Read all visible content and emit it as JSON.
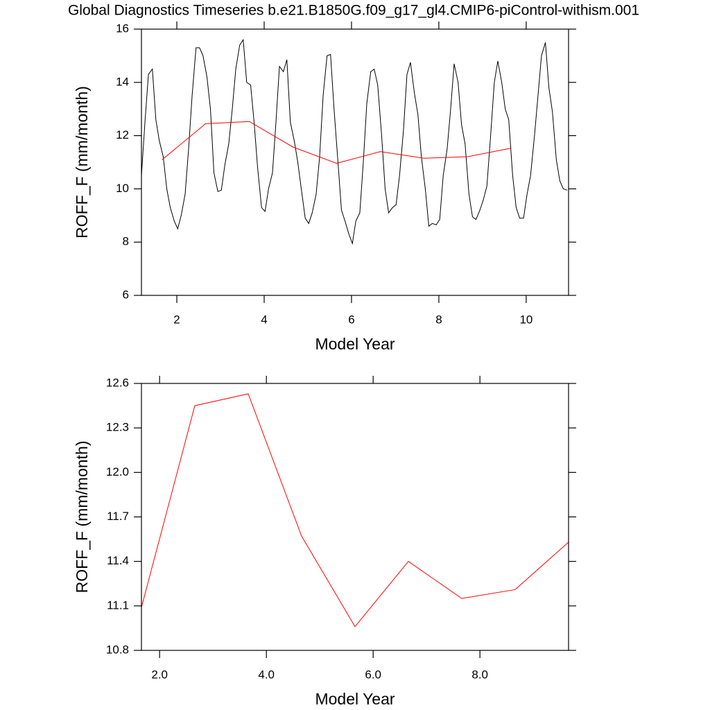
{
  "chart_data": [
    {
      "type": "line",
      "title": "Global Diagnostics Timeseries b.e21.B1850G.f09_g17_gl4.CMIP6-piControl-withism.001",
      "xlabel": "Model Year",
      "ylabel": "ROFF_F (mm/month)",
      "xlim": [
        1.19,
        10.97
      ],
      "xticks": [
        2,
        4,
        6,
        8,
        10
      ],
      "ylim": [
        6,
        16
      ],
      "yticks": [
        6,
        8,
        10,
        12,
        14,
        16
      ],
      "series": [
        {
          "color": "#000000",
          "x": [
            1.19,
            1.27,
            1.35,
            1.44,
            1.52,
            1.6,
            1.69,
            1.77,
            1.85,
            1.94,
            2.02,
            2.1,
            2.19,
            2.27,
            2.35,
            2.44,
            2.52,
            2.6,
            2.69,
            2.77,
            2.85,
            2.94,
            3.02,
            3.1,
            3.19,
            3.27,
            3.35,
            3.44,
            3.52,
            3.6,
            3.69,
            3.77,
            3.85,
            3.94,
            4.02,
            4.1,
            4.19,
            4.27,
            4.35,
            4.44,
            4.52,
            4.6,
            4.69,
            4.77,
            4.85,
            4.94,
            5.02,
            5.1,
            5.19,
            5.27,
            5.35,
            5.44,
            5.52,
            5.6,
            5.69,
            5.77,
            5.85,
            5.94,
            6.02,
            6.1,
            6.19,
            6.27,
            6.35,
            6.44,
            6.52,
            6.6,
            6.69,
            6.77,
            6.85,
            6.94,
            7.02,
            7.1,
            7.19,
            7.27,
            7.35,
            7.44,
            7.52,
            7.6,
            7.69,
            7.77,
            7.85,
            7.94,
            8.02,
            8.1,
            8.19,
            8.27,
            8.35,
            8.44,
            8.52,
            8.6,
            8.69,
            8.77,
            8.85,
            8.94,
            9.02,
            9.1,
            9.19,
            9.27,
            9.35,
            9.44,
            9.52,
            9.6,
            9.69,
            9.77,
            9.85,
            9.94,
            10.02,
            10.1,
            10.19,
            10.27,
            10.35,
            10.44,
            10.52,
            10.6,
            10.69,
            10.77,
            10.85,
            10.94
          ],
          "values": [
            10.5,
            12.5,
            14.3,
            14.5,
            12.6,
            11.8,
            11.2,
            10.0,
            9.3,
            8.8,
            8.5,
            9.0,
            9.8,
            11.5,
            13.5,
            15.3,
            15.3,
            15.0,
            14.2,
            13.0,
            10.6,
            9.9,
            9.95,
            10.9,
            11.7,
            13.0,
            14.5,
            15.4,
            15.6,
            14.0,
            13.9,
            12.5,
            10.8,
            9.3,
            9.15,
            10.0,
            10.6,
            12.5,
            14.6,
            14.4,
            14.85,
            12.5,
            11.8,
            11.0,
            10.0,
            8.9,
            8.7,
            9.1,
            9.8,
            11.2,
            13.5,
            15.0,
            15.05,
            13.0,
            11.0,
            9.2,
            8.8,
            8.3,
            7.95,
            8.8,
            9.1,
            11.0,
            13.2,
            14.4,
            14.5,
            13.9,
            12.0,
            10.0,
            9.1,
            9.3,
            9.4,
            10.5,
            12.2,
            14.3,
            14.75,
            13.6,
            12.8,
            11.2,
            10.0,
            8.6,
            8.7,
            8.65,
            8.85,
            10.5,
            11.5,
            13.0,
            14.7,
            14.0,
            12.4,
            11.7,
            9.8,
            8.95,
            8.85,
            9.2,
            9.6,
            10.1,
            12.1,
            14.0,
            14.8,
            14.0,
            13.0,
            12.6,
            10.5,
            9.3,
            8.9,
            8.9,
            9.8,
            10.5,
            12.0,
            13.5,
            15.0,
            15.5,
            13.8,
            12.9,
            11.1,
            10.3,
            10.0,
            9.95
          ]
        },
        {
          "color": "#ff0000",
          "x": [
            1.66,
            2.66,
            3.66,
            4.66,
            5.66,
            6.66,
            7.66,
            8.66,
            9.66
          ],
          "values": [
            11.09,
            12.45,
            12.53,
            11.57,
            10.96,
            11.4,
            11.15,
            11.21,
            11.53
          ]
        }
      ]
    },
    {
      "type": "line",
      "xlabel": "Model Year",
      "ylabel": "ROFF_F (mm/month)",
      "xlim": [
        1.66,
        9.66
      ],
      "xticks": [
        {
          "value": 2,
          "label": "2.0"
        },
        {
          "value": 4,
          "label": "4.0"
        },
        {
          "value": 6,
          "label": "6.0"
        },
        {
          "value": 8,
          "label": "8.0"
        }
      ],
      "ylim": [
        10.8,
        12.6
      ],
      "yticks": [
        10.8,
        11.1,
        11.4,
        11.7,
        {
          "value": 12,
          "label": "12.0"
        },
        12.3,
        12.6
      ],
      "series": [
        {
          "color": "#ff0000",
          "x": [
            1.66,
            2.66,
            3.66,
            4.66,
            5.66,
            6.66,
            7.66,
            8.66,
            9.66
          ],
          "values": [
            11.09,
            12.45,
            12.53,
            11.57,
            10.96,
            11.4,
            11.15,
            11.21,
            11.53
          ]
        }
      ]
    }
  ]
}
